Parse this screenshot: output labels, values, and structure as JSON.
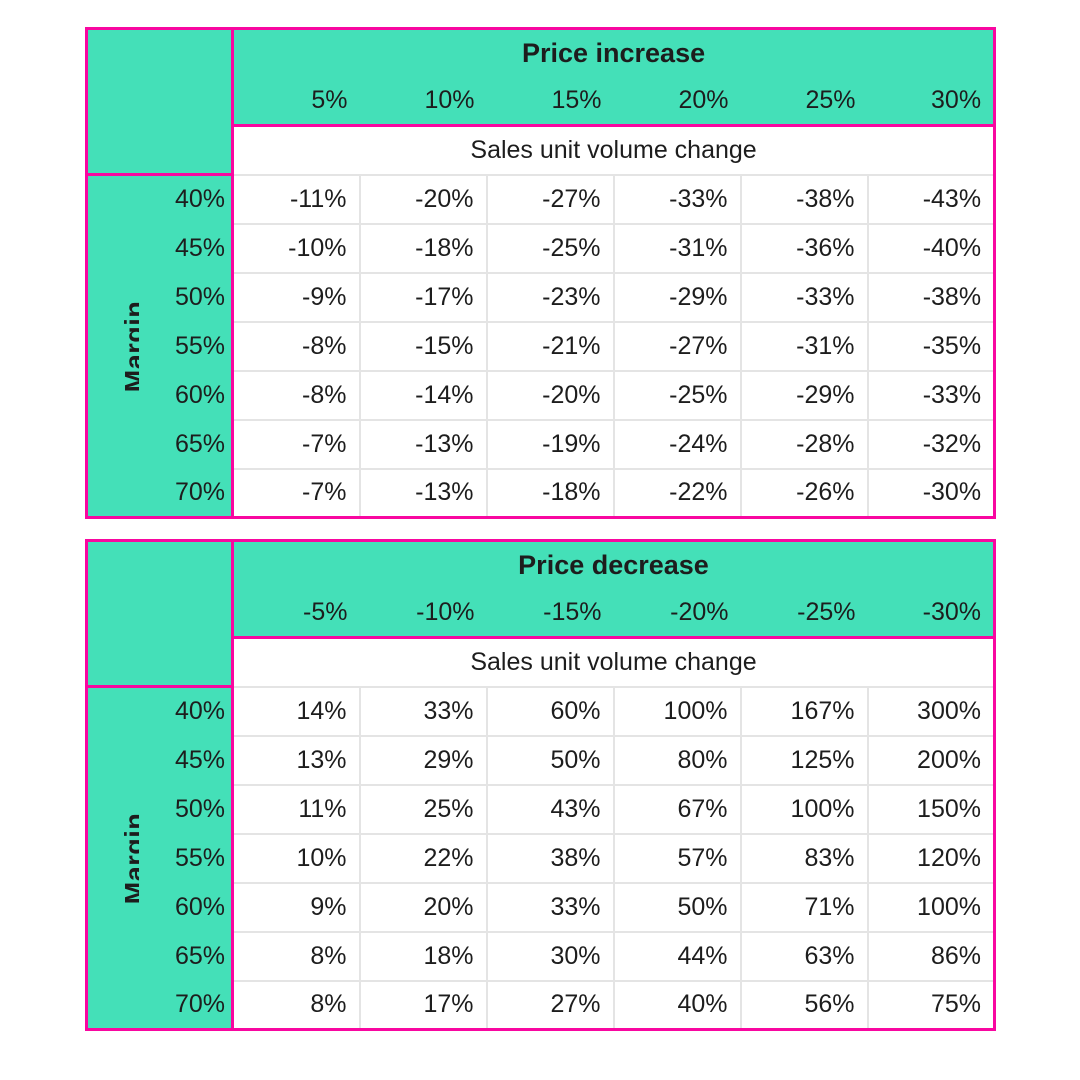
{
  "colors": {
    "header_fill": "#44E0B8",
    "table_border": "#F807A0",
    "gridline": "#E4E4E4",
    "text": "#1D1D1D",
    "background": "#FFFFFF"
  },
  "chart_data": [
    {
      "type": "table",
      "title": "Price increase",
      "subtitle": "Sales unit volume change",
      "row_label": "Margin",
      "col_headers": [
        "5%",
        "10%",
        "15%",
        "20%",
        "25%",
        "30%"
      ],
      "rows": [
        {
          "margin": "40%",
          "values": [
            "-11%",
            "-20%",
            "-27%",
            "-33%",
            "-38%",
            "-43%"
          ]
        },
        {
          "margin": "45%",
          "values": [
            "-10%",
            "-18%",
            "-25%",
            "-31%",
            "-36%",
            "-40%"
          ]
        },
        {
          "margin": "50%",
          "values": [
            "-9%",
            "-17%",
            "-23%",
            "-29%",
            "-33%",
            "-38%"
          ]
        },
        {
          "margin": "55%",
          "values": [
            "-8%",
            "-15%",
            "-21%",
            "-27%",
            "-31%",
            "-35%"
          ]
        },
        {
          "margin": "60%",
          "values": [
            "-8%",
            "-14%",
            "-20%",
            "-25%",
            "-29%",
            "-33%"
          ]
        },
        {
          "margin": "65%",
          "values": [
            "-7%",
            "-13%",
            "-19%",
            "-24%",
            "-28%",
            "-32%"
          ]
        },
        {
          "margin": "70%",
          "values": [
            "-7%",
            "-13%",
            "-18%",
            "-22%",
            "-26%",
            "-30%"
          ]
        }
      ]
    },
    {
      "type": "table",
      "title": "Price decrease",
      "subtitle": "Sales unit volume change",
      "row_label": "Margin",
      "col_headers": [
        "-5%",
        "-10%",
        "-15%",
        "-20%",
        "-25%",
        "-30%"
      ],
      "rows": [
        {
          "margin": "40%",
          "values": [
            "14%",
            "33%",
            "60%",
            "100%",
            "167%",
            "300%"
          ]
        },
        {
          "margin": "45%",
          "values": [
            "13%",
            "29%",
            "50%",
            "80%",
            "125%",
            "200%"
          ]
        },
        {
          "margin": "50%",
          "values": [
            "11%",
            "25%",
            "43%",
            "67%",
            "100%",
            "150%"
          ]
        },
        {
          "margin": "55%",
          "values": [
            "10%",
            "22%",
            "38%",
            "57%",
            "83%",
            "120%"
          ]
        },
        {
          "margin": "60%",
          "values": [
            "9%",
            "20%",
            "33%",
            "50%",
            "71%",
            "100%"
          ]
        },
        {
          "margin": "65%",
          "values": [
            "8%",
            "18%",
            "30%",
            "44%",
            "63%",
            "86%"
          ]
        },
        {
          "margin": "70%",
          "values": [
            "8%",
            "17%",
            "27%",
            "40%",
            "56%",
            "75%"
          ]
        }
      ]
    }
  ]
}
